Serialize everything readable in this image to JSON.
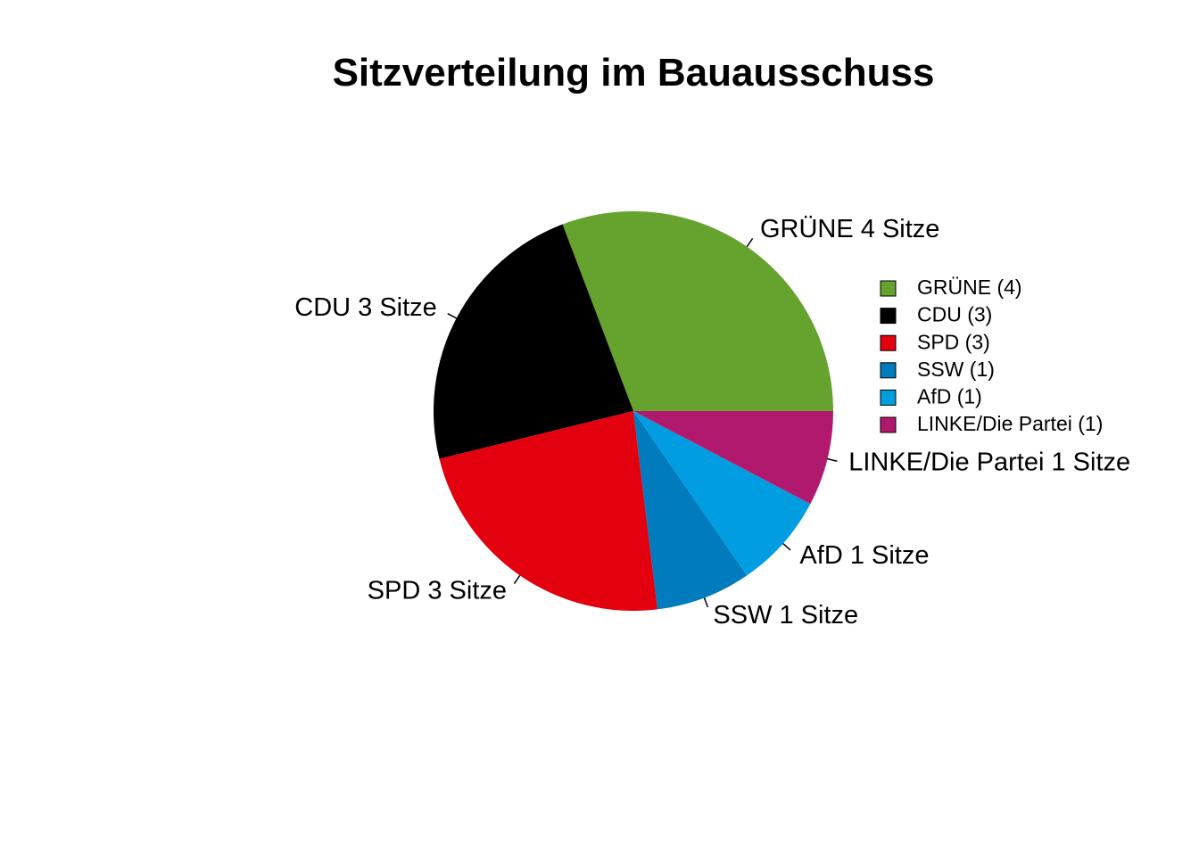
{
  "chart_data": {
    "type": "pie",
    "title": "Sitzverteilung im Bauausschuss",
    "start_angle_deg": 0,
    "direction": "counterclockwise",
    "legend_position": "right",
    "slices": [
      {
        "party": "GRÜNE",
        "seats": 4,
        "color": "#66A32E",
        "label": "GRÜNE 4 Sitze",
        "legend": "GRÜNE (4)"
      },
      {
        "party": "CDU",
        "seats": 3,
        "color": "#000000",
        "label": "CDU 3 Sitze",
        "legend": "CDU (3)"
      },
      {
        "party": "SPD",
        "seats": 3,
        "color": "#E3000F",
        "label": "SPD 3 Sitze",
        "legend": "SPD (3)"
      },
      {
        "party": "SSW",
        "seats": 1,
        "color": "#007BBE",
        "label": "SSW 1 Sitze",
        "legend": "SSW (1)"
      },
      {
        "party": "AfD",
        "seats": 1,
        "color": "#009EE0",
        "label": "AfD 1 Sitze",
        "legend": "AfD (1)"
      },
      {
        "party": "LINKE/Die Partei",
        "seats": 1,
        "color": "#B1196E",
        "label": "LINKE/Die Partei 1 Sitze",
        "legend": "LINKE/Die Partei (1)"
      }
    ]
  }
}
